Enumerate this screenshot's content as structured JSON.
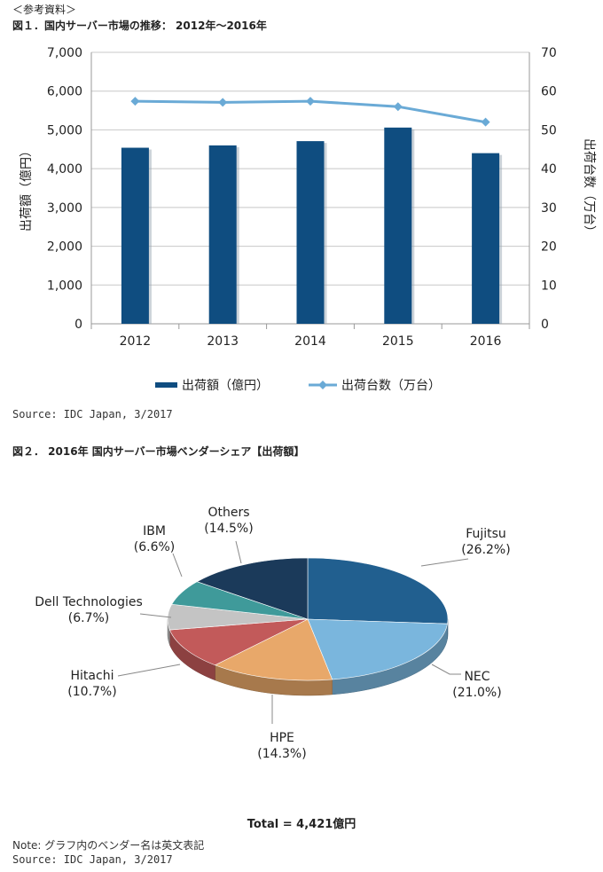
{
  "reference_label": "＜参考資料＞",
  "figure1": {
    "title": "図１．国内サーバー市場の推移：  2012年～2016年",
    "source": "Source: IDC Japan, 3/2017"
  },
  "figure2": {
    "title": "図２．  2016年 国内サーバー市場ベンダーシェア【出荷額】",
    "total": "Total = 4,421億円",
    "note": "Note: グラフ内のベンダー名は英文表記",
    "source": "Source: IDC Japan, 3/2017"
  },
  "colors": {
    "bar": "#0f4d80",
    "line": "#6aaad6",
    "grid": "#c8c8c8",
    "axis_text": "#222222"
  },
  "chart_data": [
    {
      "type": "bar+line",
      "title": "国内サーバー市場の推移：2012年～2016年",
      "categories": [
        "2012",
        "2013",
        "2014",
        "2015",
        "2016"
      ],
      "series": [
        {
          "name": "出荷額（億円）",
          "kind": "bar",
          "axis": "left",
          "values": [
            4540,
            4600,
            4710,
            5060,
            4400
          ]
        },
        {
          "name": "出荷台数（万台）",
          "kind": "line",
          "axis": "right",
          "values": [
            57.4,
            57.1,
            57.4,
            56.0,
            52.0
          ]
        }
      ],
      "ylabel_left": "出荷額（億円）",
      "ylabel_right": "出荷台数（万台）",
      "ylim_left": [
        0,
        7000
      ],
      "ylim_right": [
        0,
        70
      ],
      "yticks_left": [
        "0",
        "1,000",
        "2,000",
        "3,000",
        "4,000",
        "5,000",
        "6,000",
        "7,000"
      ],
      "yticks_right": [
        "0",
        "10",
        "20",
        "30",
        "40",
        "50",
        "60",
        "70"
      ],
      "grid": true,
      "legend_position": "bottom"
    },
    {
      "type": "pie",
      "title": "2016年 国内サーバー市場ベンダーシェア【出荷額】",
      "slices": [
        {
          "label": "Fujitsu",
          "pct_label": "(26.2%)",
          "value": 26.2,
          "color": "#215f8f"
        },
        {
          "label": "NEC",
          "pct_label": "(21.0%)",
          "value": 21.0,
          "color": "#7ab6dd"
        },
        {
          "label": "HPE",
          "pct_label": "(14.3%)",
          "value": 14.3,
          "color": "#e8a86a"
        },
        {
          "label": "Hitachi",
          "pct_label": "(10.7%)",
          "value": 10.7,
          "color": "#c25a5a"
        },
        {
          "label": "Dell Technologies",
          "pct_label": "(6.7%)",
          "value": 6.7,
          "color": "#c4c4c4"
        },
        {
          "label": "IBM",
          "pct_label": "(6.6%)",
          "value": 6.6,
          "color": "#3f9a9a"
        },
        {
          "label": "Others",
          "pct_label": "(14.5%)",
          "value": 14.5,
          "color": "#1b3a5a"
        }
      ]
    }
  ]
}
